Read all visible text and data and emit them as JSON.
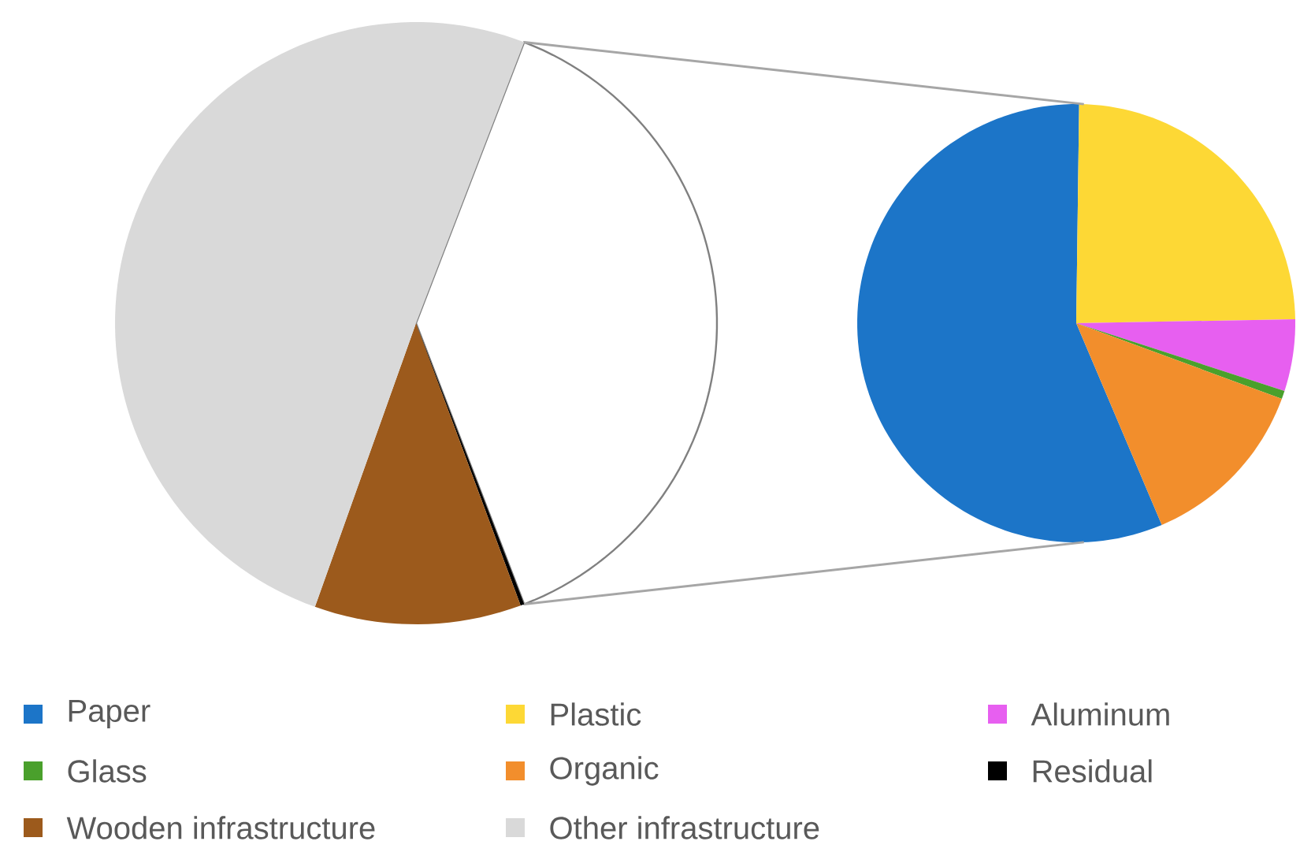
{
  "chart_data": [
    {
      "type": "pie",
      "categories": [
        null,
        "Residual",
        "Wooden infrastructure",
        "Other infrastructure"
      ],
      "values": [
        38.3,
        0.2,
        11.1,
        50.4
      ],
      "colors": [
        "#ffffff",
        "#000000",
        "#9c5a1c",
        "#d9d9d9"
      ],
      "legend": "bottom"
    },
    {
      "type": "pie",
      "categories": [
        "Paper",
        "Plastic",
        "Aluminum",
        "Glass",
        "Organic"
      ],
      "values": [
        56.6,
        24.5,
        5.3,
        0.6,
        13.0
      ],
      "colors": [
        "#1c75c8",
        "#fdd835",
        "#e75ff0",
        "#4aa02c",
        "#f28e2c"
      ],
      "legend": "bottom"
    }
  ]
}
